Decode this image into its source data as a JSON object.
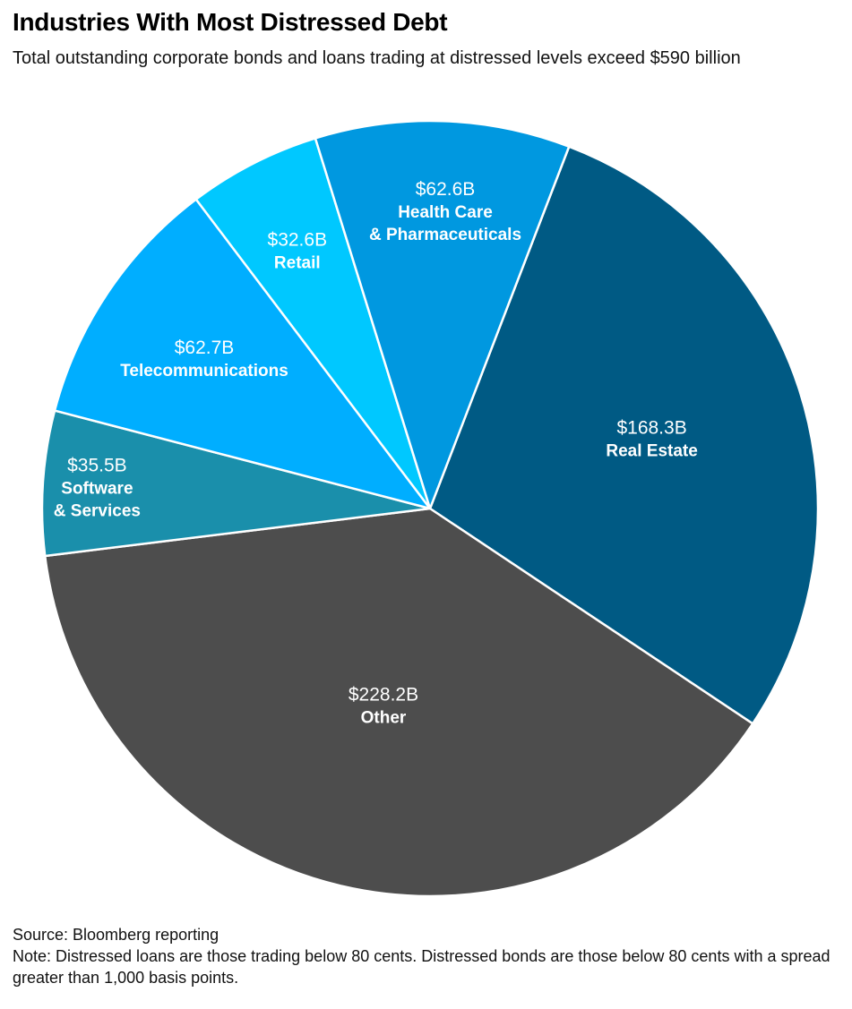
{
  "chart_data": {
    "type": "pie",
    "title": "Industries With Most Distressed Debt",
    "subtitle": "Total outstanding corporate bonds and loans trading at distressed levels exceed $590 billion",
    "unit": "billion USD",
    "slices": [
      {
        "name": "Real Estate",
        "name_lines": [
          "Real Estate"
        ],
        "value": 168.3,
        "value_label": "$168.3B",
        "color": "#005a84"
      },
      {
        "name": "Other",
        "name_lines": [
          "Other"
        ],
        "value": 228.2,
        "value_label": "$228.2B",
        "color": "#4d4d4d"
      },
      {
        "name": "Software & Services",
        "name_lines": [
          "Software",
          "& Services"
        ],
        "value": 35.5,
        "value_label": "$35.5B",
        "color": "#1a8fab"
      },
      {
        "name": "Telecommunications",
        "name_lines": [
          "Telecommunications"
        ],
        "value": 62.7,
        "value_label": "$62.7B",
        "color": "#00aeff"
      },
      {
        "name": "Retail",
        "name_lines": [
          "Retail"
        ],
        "value": 32.6,
        "value_label": "$32.6B",
        "color": "#00c8ff"
      },
      {
        "name": "Health Care & Pharmaceuticals",
        "name_lines": [
          "Health Care",
          "& Pharmaceuticals"
        ],
        "value": 62.6,
        "value_label": "$62.6B",
        "color": "#0098e0"
      }
    ],
    "source": "Source: Bloomberg reporting",
    "note": "Note: Distressed loans are those trading below 80 cents. Distressed bonds are those below 80 cents with a spread greater than 1,000 basis points."
  }
}
